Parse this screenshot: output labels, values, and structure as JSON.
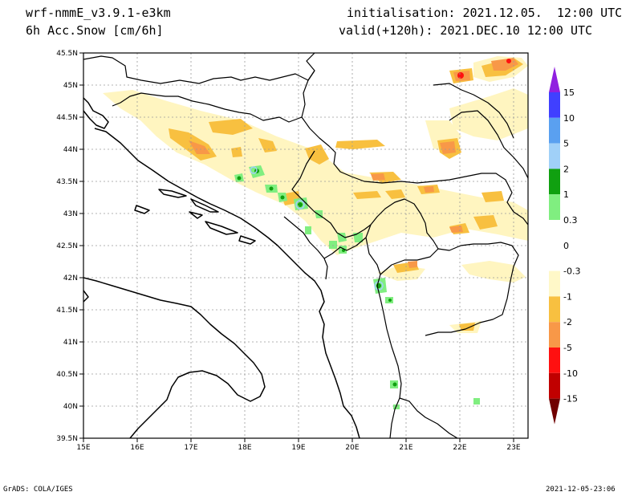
{
  "header": {
    "model": "wrf-nmmE_v3.9.1-e3km",
    "field": "6h Acc.Snow [cm/6h]",
    "init": "initialisation: 2021.12.05.  12:00 UTC",
    "valid": "valid(+120h): 2021.DEC.10 12:00 UTC"
  },
  "footer": {
    "credit": "GrADS: COLA/IGES",
    "timestamp": "2021-12-05-23:06"
  },
  "map": {
    "lon_range": [
      15,
      23.25
    ],
    "lat_range": [
      39.5,
      45.5
    ],
    "lat_labels": [
      "45.5N",
      "45N",
      "44.5N",
      "44N",
      "43.5N",
      "43N",
      "42.5N",
      "42N",
      "41.5N",
      "41N",
      "40.5N",
      "40N",
      "39.5N"
    ],
    "lon_labels": [
      "15E",
      "16E",
      "17E",
      "18E",
      "19E",
      "20E",
      "21E",
      "22E",
      "23E"
    ]
  },
  "colorbar": {
    "labels": [
      "15",
      "10",
      "5",
      "2",
      "1",
      "0.3",
      "0",
      "-0.3",
      "-1",
      "-2",
      "-5",
      "-10",
      "-15"
    ],
    "colors": [
      "#4040ff",
      "#5aa0f0",
      "#a0d0f8",
      "#10a010",
      "#80ee80",
      "#ffffff",
      "#ffffff",
      "#fff8c8",
      "#f8c040",
      "#f89848",
      "#ff1010",
      "#c00000",
      "#900000"
    ],
    "top_arrow_color": "#9020e0",
    "bottom_arrow_color": "#700000"
  },
  "colors": {
    "light_yellow": "#fff5c0",
    "yellow": "#f8c040",
    "orange": "#f89848",
    "red": "#ff1010",
    "light_green": "#80ee80",
    "green": "#10a010",
    "light_blue": "#a0d0f8"
  }
}
